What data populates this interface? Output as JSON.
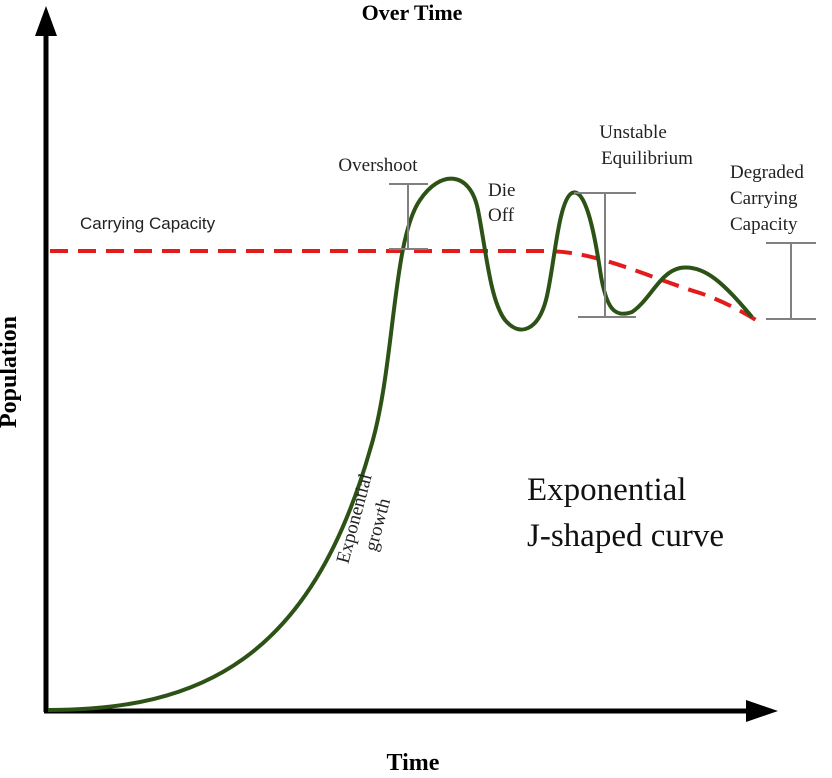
{
  "diagram": {
    "title": "Over Time",
    "x_axis_label": "Time",
    "y_axis_label": "Population",
    "carrying_capacity_label": "Carrying Capacity",
    "overshoot_label": "Overshoot",
    "die_off_label": [
      "Die",
      "Off"
    ],
    "unstable_label": [
      "Unstable",
      "Equilibrium"
    ],
    "degraded_label": [
      "Degraded",
      "Carrying",
      "Capacity"
    ],
    "exp_growth_label": [
      "Exponential",
      "growth"
    ],
    "j_curve_label": [
      "Exponential",
      "J-shaped curve"
    ]
  },
  "colors": {
    "curve": "#2d5216",
    "capacity_line": "#e31b1b",
    "axes": "#000000",
    "brackets": "#808080",
    "text": "#222222"
  }
}
